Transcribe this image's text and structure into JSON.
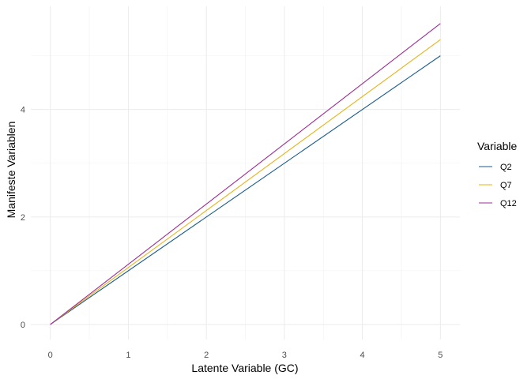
{
  "chart_data": {
    "type": "line",
    "title": "",
    "xlabel": "Latente Variable (GC)",
    "ylabel": "Manifeste Variablen",
    "xlim": [
      -0.25,
      5.25
    ],
    "ylim": [
      -0.28,
      5.92
    ],
    "x_ticks": [
      0,
      1,
      2,
      3,
      4,
      5
    ],
    "y_ticks": [
      0,
      2,
      4
    ],
    "grid": true,
    "legend": {
      "title": "Variable",
      "placement": "right"
    },
    "series": [
      {
        "name": "Q2",
        "color": "#1a5b8c",
        "x": [
          0,
          5
        ],
        "y": [
          0,
          5.0
        ]
      },
      {
        "name": "Q7",
        "color": "#e6b318",
        "x": [
          0,
          5
        ],
        "y": [
          0,
          5.3
        ]
      },
      {
        "name": "Q12",
        "color": "#9c2c96",
        "x": [
          0,
          5
        ],
        "y": [
          0,
          5.6
        ]
      }
    ]
  }
}
